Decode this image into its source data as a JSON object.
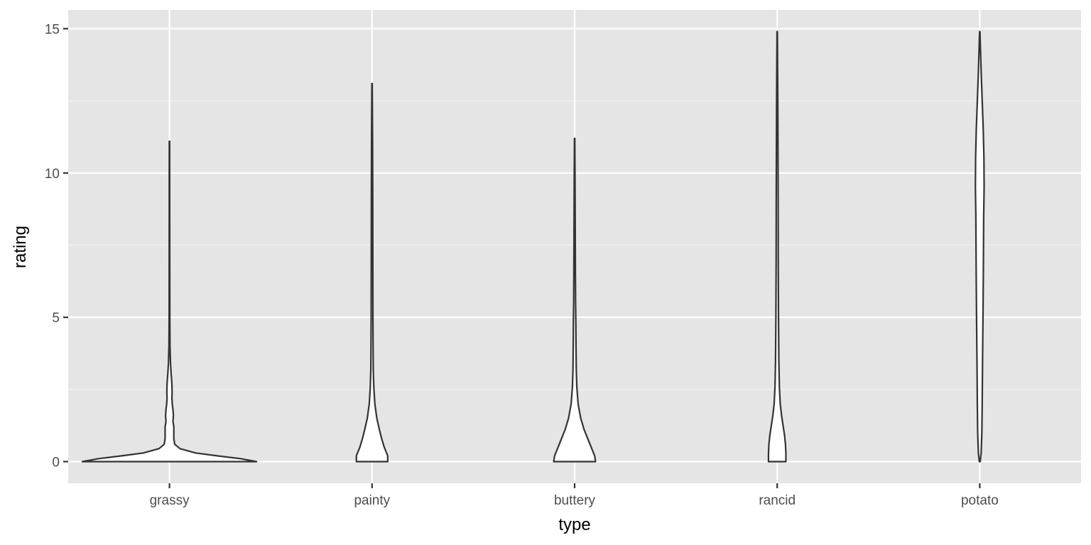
{
  "chart_data": {
    "type": "violin",
    "xlabel": "type",
    "ylabel": "rating",
    "categories": [
      "grassy",
      "painty",
      "buttery",
      "rancid",
      "potato"
    ],
    "ylim": [
      -0.75,
      15.65
    ],
    "yticks": [
      0,
      5,
      10,
      15
    ],
    "ytick_labels": [
      "0",
      "5",
      "10",
      "15"
    ],
    "grid": true,
    "legend": "none",
    "colors": {
      "panel": "#e5e5e5",
      "grid": "#ffffff",
      "violin_fill": "#ffffff",
      "violin_outline": "#333333"
    },
    "violins": [
      {
        "category": "grassy",
        "min": 0,
        "max": 11.1,
        "density_profile": [
          [
            0,
            1.0
          ],
          [
            0.1,
            0.82
          ],
          [
            0.2,
            0.55
          ],
          [
            0.3,
            0.3
          ],
          [
            0.45,
            0.12
          ],
          [
            0.6,
            0.06
          ],
          [
            0.8,
            0.05
          ],
          [
            1.0,
            0.05
          ],
          [
            1.2,
            0.05
          ],
          [
            1.4,
            0.04
          ],
          [
            1.6,
            0.045
          ],
          [
            1.8,
            0.04
          ],
          [
            2.0,
            0.032
          ],
          [
            2.2,
            0.028
          ],
          [
            2.4,
            0.03
          ],
          [
            2.7,
            0.028
          ],
          [
            3.0,
            0.02
          ],
          [
            3.4,
            0.012
          ],
          [
            4.0,
            0.006
          ],
          [
            5.0,
            0.004
          ],
          [
            7.0,
            0.003
          ],
          [
            9.0,
            0.0025
          ],
          [
            11.1,
            0.002
          ]
        ]
      },
      {
        "category": "painty",
        "min": 0,
        "max": 13.1,
        "density_profile": [
          [
            0,
            0.18
          ],
          [
            0.2,
            0.18
          ],
          [
            0.5,
            0.14
          ],
          [
            0.8,
            0.11
          ],
          [
            1.1,
            0.085
          ],
          [
            1.5,
            0.055
          ],
          [
            2.0,
            0.032
          ],
          [
            2.6,
            0.02
          ],
          [
            3.2,
            0.014
          ],
          [
            4.0,
            0.012
          ],
          [
            5.0,
            0.01
          ],
          [
            7.0,
            0.009
          ],
          [
            9.0,
            0.008
          ],
          [
            11.0,
            0.006
          ],
          [
            13.1,
            0.002
          ]
        ]
      },
      {
        "category": "buttery",
        "min": 0,
        "max": 11.2,
        "density_profile": [
          [
            0,
            0.24
          ],
          [
            0.2,
            0.23
          ],
          [
            0.5,
            0.19
          ],
          [
            0.8,
            0.15
          ],
          [
            1.1,
            0.11
          ],
          [
            1.5,
            0.07
          ],
          [
            2.0,
            0.04
          ],
          [
            2.6,
            0.025
          ],
          [
            3.2,
            0.019
          ],
          [
            4.0,
            0.016
          ],
          [
            4.8,
            0.014
          ],
          [
            5.5,
            0.011
          ],
          [
            6.5,
            0.009
          ],
          [
            8.0,
            0.007
          ],
          [
            9.5,
            0.005
          ],
          [
            11.2,
            0.002
          ]
        ]
      },
      {
        "category": "rancid",
        "min": 0,
        "max": 14.9,
        "density_profile": [
          [
            0,
            0.1
          ],
          [
            0.3,
            0.1
          ],
          [
            0.6,
            0.095
          ],
          [
            0.9,
            0.085
          ],
          [
            1.2,
            0.07
          ],
          [
            1.6,
            0.05
          ],
          [
            2.0,
            0.035
          ],
          [
            2.6,
            0.025
          ],
          [
            3.5,
            0.019
          ],
          [
            5.0,
            0.015
          ],
          [
            7.0,
            0.012
          ],
          [
            9.0,
            0.011
          ],
          [
            11.0,
            0.009
          ],
          [
            13.0,
            0.006
          ],
          [
            14.9,
            0.002
          ]
        ]
      },
      {
        "category": "potato",
        "min": 0,
        "max": 14.9,
        "density_profile": [
          [
            0,
            0.005
          ],
          [
            0.3,
            0.016
          ],
          [
            1.0,
            0.024
          ],
          [
            2.0,
            0.028
          ],
          [
            3.5,
            0.032
          ],
          [
            5.0,
            0.037
          ],
          [
            6.5,
            0.041
          ],
          [
            7.5,
            0.043
          ],
          [
            8.5,
            0.045
          ],
          [
            9.5,
            0.05
          ],
          [
            10.5,
            0.048
          ],
          [
            11.5,
            0.04
          ],
          [
            12.5,
            0.028
          ],
          [
            13.5,
            0.016
          ],
          [
            14.9,
            0.002
          ]
        ]
      }
    ]
  }
}
